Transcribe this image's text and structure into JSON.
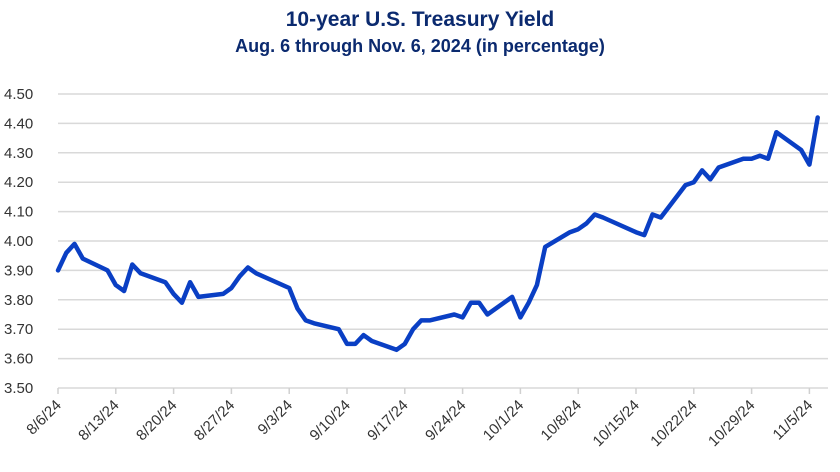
{
  "chart_data": {
    "type": "line",
    "title": "10-year U.S. Treasury Yield",
    "subtitle": "Aug. 6 through Nov. 6, 2024 (in percentage)",
    "xlabel": "",
    "ylabel": "",
    "ylim": [
      3.5,
      4.5
    ],
    "yticks": [
      "3.50",
      "3.60",
      "3.70",
      "3.80",
      "3.90",
      "4.00",
      "4.10",
      "4.20",
      "4.30",
      "4.40",
      "4.50"
    ],
    "xticks": [
      "8/6/24",
      "8/13/24",
      "8/20/24",
      "8/27/24",
      "9/3/24",
      "9/10/24",
      "9/17/24",
      "9/24/24",
      "10/1/24",
      "10/8/24",
      "10/15/24",
      "10/22/24",
      "10/29/24",
      "11/5/24"
    ],
    "grid": true,
    "line_color": "#0a3fc4",
    "series": [
      {
        "x": [
          "2024-08-06",
          "2024-08-07",
          "2024-08-08",
          "2024-08-09",
          "2024-08-12",
          "2024-08-13",
          "2024-08-14",
          "2024-08-15",
          "2024-08-16",
          "2024-08-19",
          "2024-08-20",
          "2024-08-21",
          "2024-08-22",
          "2024-08-23",
          "2024-08-26",
          "2024-08-27",
          "2024-08-28",
          "2024-08-29",
          "2024-08-30",
          "2024-09-03",
          "2024-09-04",
          "2024-09-05",
          "2024-09-06",
          "2024-09-09",
          "2024-09-10",
          "2024-09-11",
          "2024-09-12",
          "2024-09-13",
          "2024-09-16",
          "2024-09-17",
          "2024-09-18",
          "2024-09-19",
          "2024-09-20",
          "2024-09-23",
          "2024-09-24",
          "2024-09-25",
          "2024-09-26",
          "2024-09-27",
          "2024-09-30",
          "2024-10-01",
          "2024-10-02",
          "2024-10-03",
          "2024-10-04",
          "2024-10-07",
          "2024-10-08",
          "2024-10-09",
          "2024-10-10",
          "2024-10-11",
          "2024-10-15",
          "2024-10-16",
          "2024-10-17",
          "2024-10-18",
          "2024-10-21",
          "2024-10-22",
          "2024-10-23",
          "2024-10-24",
          "2024-10-25",
          "2024-10-28",
          "2024-10-29",
          "2024-10-30",
          "2024-10-31",
          "2024-11-01",
          "2024-11-04",
          "2024-11-05",
          "2024-11-06"
        ],
        "y": [
          3.9,
          3.96,
          3.99,
          3.94,
          3.9,
          3.85,
          3.83,
          3.92,
          3.89,
          3.86,
          3.82,
          3.79,
          3.86,
          3.81,
          3.82,
          3.84,
          3.88,
          3.91,
          3.89,
          3.84,
          3.77,
          3.73,
          3.72,
          3.7,
          3.65,
          3.65,
          3.68,
          3.66,
          3.63,
          3.65,
          3.7,
          3.73,
          3.73,
          3.75,
          3.74,
          3.79,
          3.79,
          3.75,
          3.81,
          3.74,
          3.79,
          3.85,
          3.98,
          4.03,
          4.04,
          4.06,
          4.09,
          4.08,
          4.03,
          4.02,
          4.09,
          4.08,
          4.19,
          4.2,
          4.24,
          4.21,
          4.25,
          4.28,
          4.28,
          4.29,
          4.28,
          4.37,
          4.31,
          4.26,
          4.42
        ]
      }
    ]
  }
}
